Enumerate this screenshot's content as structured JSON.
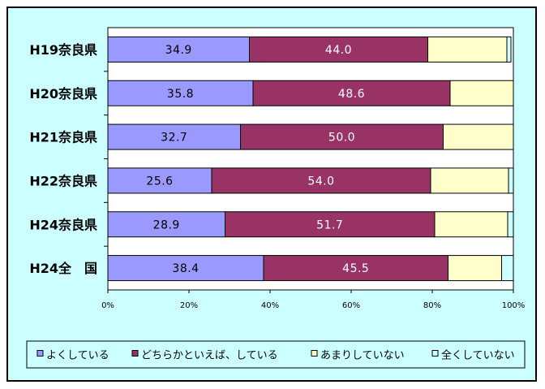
{
  "chart_data": {
    "type": "bar",
    "orientation": "horizontal",
    "stacked": "percent",
    "categories": [
      "H19奈良県",
      "H20奈良県",
      "H21奈良県",
      "H22奈良県",
      "H24奈良県",
      "H24全　国"
    ],
    "series": [
      {
        "name": "よくしている",
        "color": "#9999ff",
        "values": [
          34.9,
          35.8,
          32.7,
          25.6,
          28.9,
          38.4
        ],
        "labels": [
          "34.9",
          "35.8",
          "32.7",
          "25.6",
          "28.9",
          "38.4"
        ]
      },
      {
        "name": "どちらかといえば、している",
        "color": "#993366",
        "values": [
          44.0,
          48.6,
          50.0,
          54.0,
          51.7,
          45.5
        ],
        "labels": [
          "44.0",
          "48.6",
          "50.0",
          "54.0",
          "51.7",
          "45.5"
        ]
      },
      {
        "name": "あまりしていない",
        "color": "#ffffcc",
        "values": [
          19.5,
          15.6,
          17.3,
          19.2,
          18.0,
          13.2
        ],
        "labels": [
          "",
          "",
          "",
          "",
          "",
          ""
        ]
      },
      {
        "name": "全くしていない",
        "color": "#ccffff",
        "values": [
          1.0,
          0.2,
          0.2,
          1.2,
          1.4,
          3.0
        ],
        "labels": [
          "",
          "",
          "",
          "",
          "",
          ""
        ]
      }
    ],
    "xlim": [
      0,
      100
    ],
    "xticks": [
      "0%",
      "20%",
      "40%",
      "60%",
      "80%",
      "100%"
    ],
    "grid": false,
    "legend": "bottom",
    "plot_background": "#ffffff",
    "chart_background": "#ccffff"
  }
}
